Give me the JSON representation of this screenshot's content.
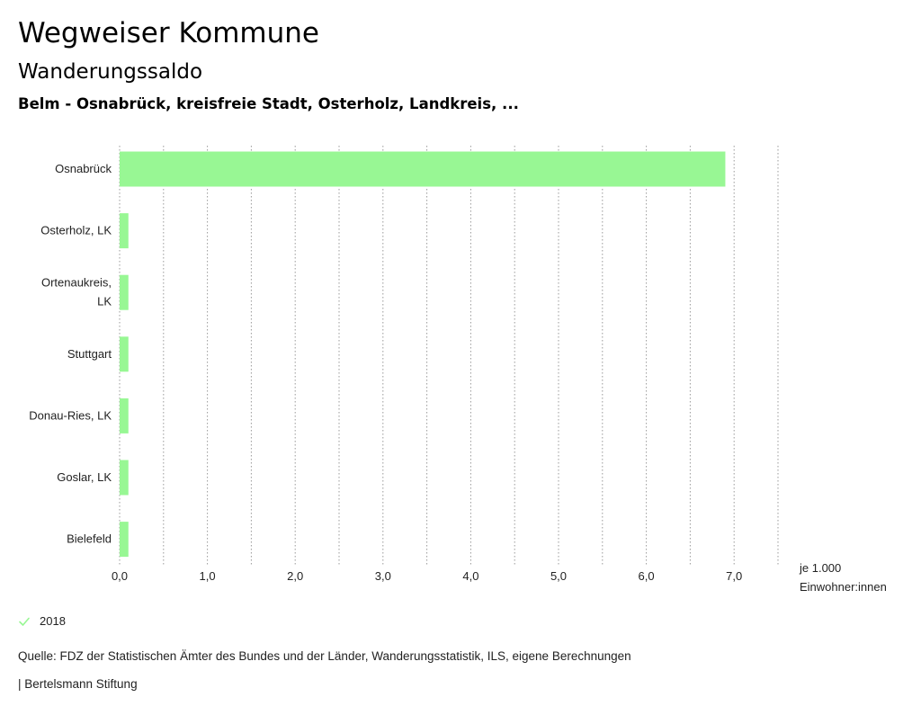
{
  "header": {
    "title": "Wegweiser Kommune",
    "subtitle": "Wanderungssaldo",
    "context": "Belm - Osnabrück, kreisfreie Stadt, Osterholz, Landkreis, ..."
  },
  "chart_data": {
    "type": "bar",
    "orientation": "horizontal",
    "categories": [
      "Osnabrück",
      "Osterholz, LK",
      "Ortenaukreis, LK",
      "Stuttgart",
      "Donau-Ries, LK",
      "Goslar, LK",
      "Bielefeld"
    ],
    "category_lines": [
      [
        "Osnabrück"
      ],
      [
        "Osterholz, LK"
      ],
      [
        "Ortenaukreis,",
        "LK"
      ],
      [
        "Stuttgart"
      ],
      [
        "Donau-Ries, LK"
      ],
      [
        "Goslar, LK"
      ],
      [
        "Bielefeld"
      ]
    ],
    "series": [
      {
        "name": "2018",
        "values": [
          6.9,
          0.1,
          0.1,
          0.1,
          0.1,
          0.1,
          0.1
        ],
        "color": "#98f794"
      }
    ],
    "xlim": [
      0,
      7.5
    ],
    "xticks": [
      0,
      1,
      2,
      3,
      4,
      5,
      6,
      7
    ],
    "xtick_labels": [
      "0,0",
      "1,0",
      "2,0",
      "3,0",
      "4,0",
      "5,0",
      "6,0",
      "7,0"
    ],
    "gridlines": [
      0.5,
      1,
      1.5,
      2,
      2.5,
      3,
      3.5,
      4,
      4.5,
      5,
      5.5,
      6,
      6.5,
      7,
      7.5
    ],
    "grid": true,
    "xlabel": "je 1.000 Einwohner:innen",
    "xlabel_lines": [
      "je 1.000",
      "Einwohner:innen"
    ]
  },
  "legend": {
    "label": "2018",
    "icon": "check-icon",
    "color": "#98f794"
  },
  "footer": {
    "source": "Quelle: FDZ der Statistischen Ämter des Bundes und der Länder, Wanderungsstatistik, ILS, eigene Berechnungen",
    "brand": "| Bertelsmann Stiftung"
  }
}
